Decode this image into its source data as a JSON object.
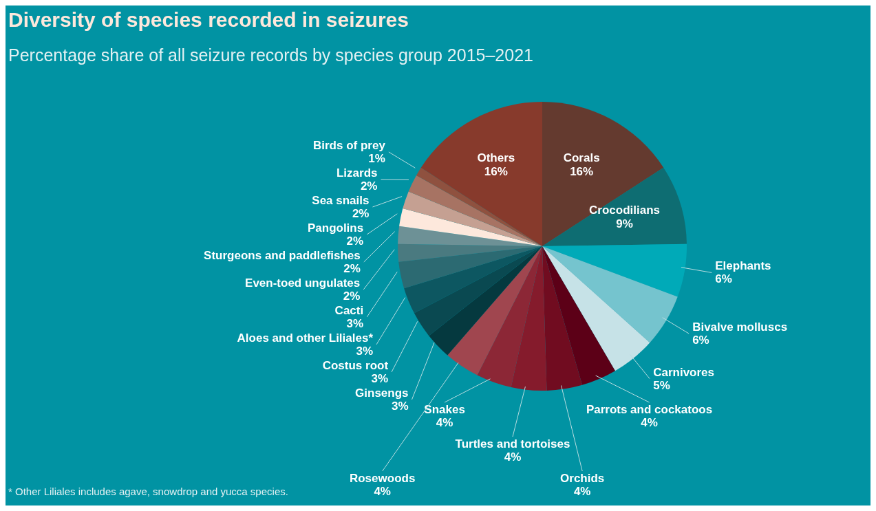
{
  "chart_data": {
    "type": "pie",
    "title": "Diversity of species recorded in seizures",
    "subtitle": "Percentage share of all seizure records by species group 2015–2021",
    "categories": [
      "Corals",
      "Crocodilians",
      "Elephants",
      "Bivalve molluscs",
      "Carnivores",
      "Parrots and cockatoos",
      "Orchids",
      "Turtles and tortoises",
      "Snakes",
      "Rosewoods",
      "Ginsengs",
      "Costus root",
      "Aloes and other Liliales*",
      "Cacti",
      "Even-toed ungulates",
      "Sturgeons and paddlefishes",
      "Pangolins",
      "Sea snails",
      "Lizards",
      "Birds of prey",
      "Others"
    ],
    "values": [
      16,
      9,
      6,
      6,
      5,
      4,
      4,
      4,
      4,
      4,
      3,
      3,
      3,
      3,
      2,
      2,
      2,
      2,
      2,
      1,
      16
    ],
    "value_labels": [
      "16%",
      "9%",
      "6%",
      "6%",
      "5%",
      "4%",
      "4%",
      "4%",
      "4%",
      "4%",
      "3%",
      "3%",
      "3%",
      "3%",
      "2%",
      "2%",
      "2%",
      "2%",
      "2%",
      "1%",
      "16%"
    ],
    "colors": [
      "#643a2f",
      "#0e6d72",
      "#00aab8",
      "#75c4ce",
      "#c6e2e7",
      "#5c0017",
      "#710c20",
      "#851b2c",
      "#8c2736",
      "#a0464f",
      "#05393f",
      "#0a4951",
      "#0d5761",
      "#2c6a72",
      "#4a7a80",
      "#6d9196",
      "#fde8dc",
      "#c5a092",
      "#a77363",
      "#8f513f",
      "#873a2c"
    ],
    "annotations": [
      "* Other Liliales includes agave, snowdrop and yucca species."
    ]
  }
}
